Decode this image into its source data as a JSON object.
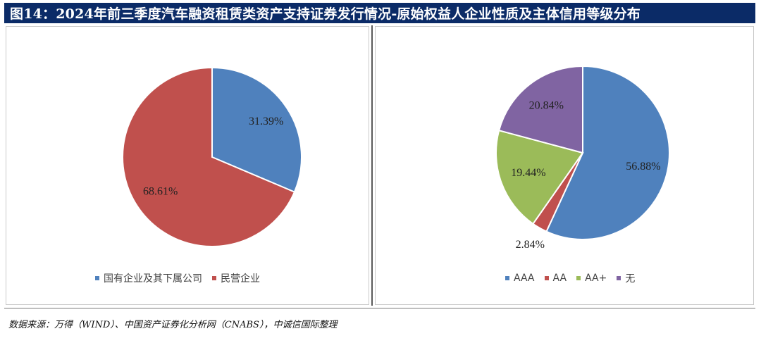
{
  "title": "图14：2024年前三季度汽车融资租赁类资产支持证券发行情况-原始权益人企业性质及主体信用等级分布",
  "source": "数据来源：万得（WIND）、中国资产证券化分析网（CNABS），中诚信国际整理",
  "chart_data": [
    {
      "type": "pie",
      "title": "",
      "categories": [
        "国有企业及其下属公司",
        "民营企业"
      ],
      "values": [
        31.39,
        68.61
      ],
      "labels": [
        "31.39%",
        "68.61%"
      ],
      "colors": [
        "#4f81bd",
        "#c0504d"
      ],
      "legend_position": "bottom"
    },
    {
      "type": "pie",
      "title": "",
      "categories": [
        "AAA",
        "AA",
        "AA+",
        "无"
      ],
      "values": [
        56.88,
        2.84,
        19.44,
        20.84
      ],
      "labels": [
        "56.88%",
        "2.84%",
        "19.44%",
        "20.84%"
      ],
      "colors": [
        "#4f81bd",
        "#c0504d",
        "#9bbb59",
        "#8064a2"
      ],
      "legend_position": "bottom"
    }
  ]
}
